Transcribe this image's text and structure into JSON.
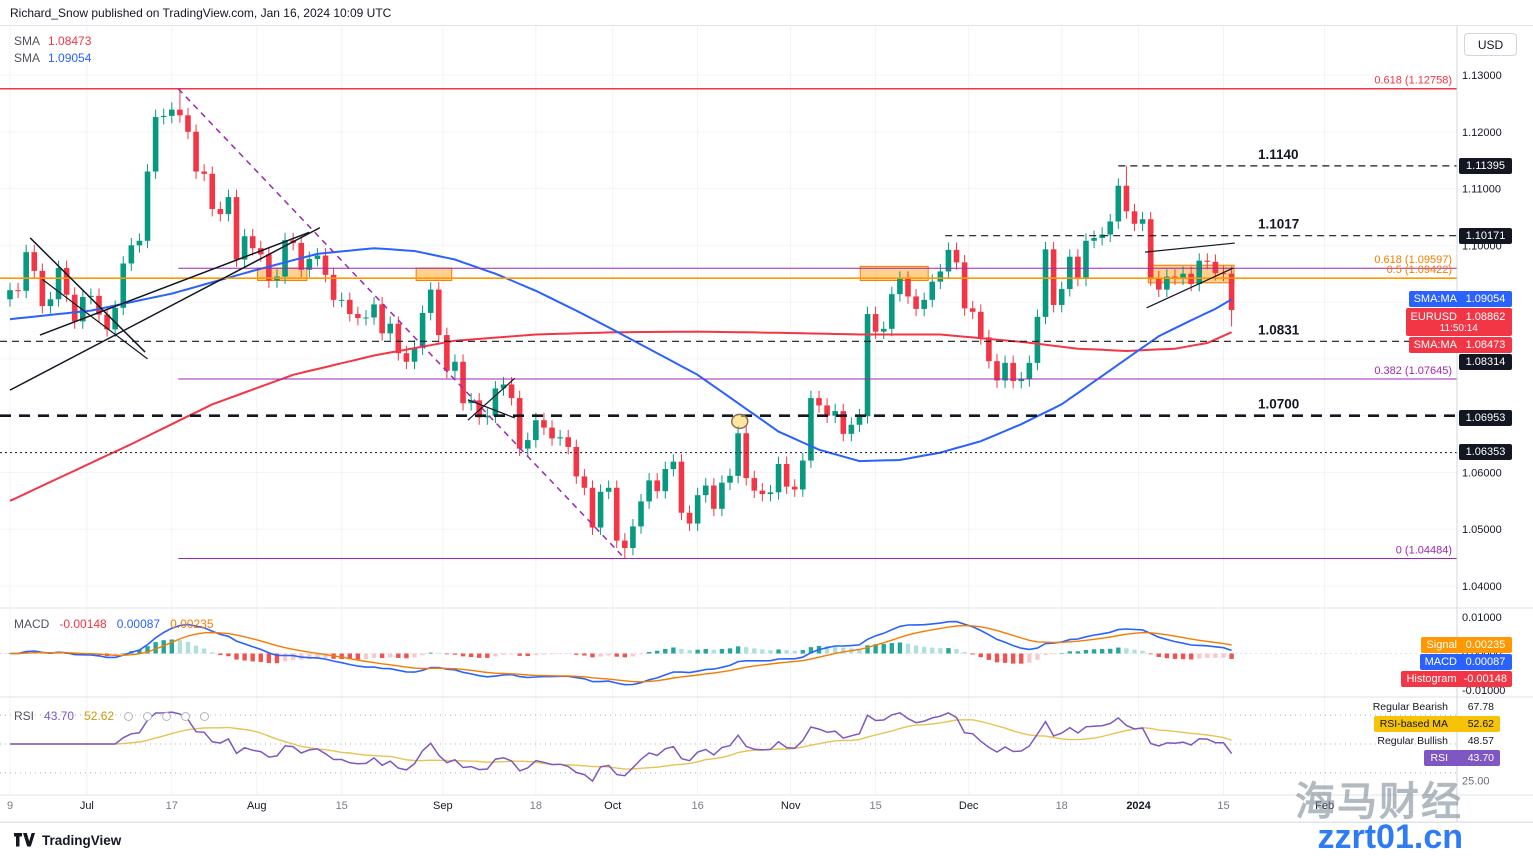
{
  "header": {
    "text": "Richard_Snow published on TradingView.com, Jan 16, 2024 10:09 UTC"
  },
  "price_pane": {
    "legend": [
      {
        "label": "SMA",
        "value": "1.08473"
      },
      {
        "label": "SMA",
        "value": "1.09054"
      }
    ]
  },
  "macd_pane": {
    "title": "MACD",
    "values": [
      "-0.00148",
      "0.00087",
      "0.00235"
    ]
  },
  "rsi_pane": {
    "title": "RSI",
    "values": [
      "43.70",
      "52.62"
    ]
  },
  "price_axis": {
    "currency": "USD",
    "ticks": [
      {
        "text": "1.13000",
        "price": 1.13
      },
      {
        "text": "1.12000",
        "price": 1.12
      },
      {
        "text": "1.11000",
        "price": 1.11
      },
      {
        "text": "1.10000",
        "price": 1.1
      },
      {
        "text": "1.09000",
        "price": 1.09
      },
      {
        "text": "1.08000",
        "price": 1.08
      },
      {
        "text": "1.07000",
        "price": 1.07
      },
      {
        "text": "1.06000",
        "price": 1.06
      },
      {
        "text": "1.05000",
        "price": 1.05
      },
      {
        "text": "1.04000",
        "price": 1.04
      }
    ],
    "badges": [
      {
        "name": "level-badge-11395",
        "text": "1.11395",
        "price": 1.11395,
        "bg": "#131722",
        "fg": "#ffffff"
      },
      {
        "name": "level-badge-10171",
        "text": "1.10171",
        "price": 1.10171,
        "bg": "#131722",
        "fg": "#ffffff"
      },
      {
        "name": "sma-blue-badge",
        "label": "SMA:MA",
        "text": "1.09054",
        "price": 1.09054,
        "bg": "#2962ff",
        "fg": "#ffffff"
      },
      {
        "name": "symbol-price-badge",
        "label": "EURUSD",
        "text": "1.08862",
        "sub": "11:50:14",
        "price": 1.08862,
        "bg": "#f23645",
        "fg": "#ffffff"
      },
      {
        "name": "sma-red-badge",
        "label": "SMA:MA",
        "text": "1.08473",
        "price": 1.08473,
        "bg": "#f23645",
        "fg": "#ffffff"
      },
      {
        "name": "level-badge-08314",
        "text": "1.08314",
        "price": 1.08314,
        "bg": "#131722",
        "fg": "#ffffff"
      },
      {
        "name": "level-badge-06953",
        "text": "1.06953",
        "price": 1.06953,
        "bg": "#131722",
        "fg": "#ffffff"
      },
      {
        "name": "level-badge-06353",
        "text": "1.06353",
        "price": 1.06353,
        "bg": "#131722",
        "fg": "#ffffff"
      }
    ]
  },
  "macd_axis": {
    "ticks": [
      {
        "text": "0.01000",
        "value": 0.01
      },
      {
        "text": "0.00000",
        "value": 0.0
      },
      {
        "text": "-0.01000",
        "value": -0.01
      }
    ],
    "badges": [
      {
        "name": "signal-badge",
        "label": "Signal",
        "text": "0.00235",
        "value": 0.00235,
        "bg": "#ff9800",
        "fg": "#ffffff"
      },
      {
        "name": "macd-badge",
        "label": "MACD",
        "text": "0.00087",
        "value": 0.00087,
        "bg": "#2962ff",
        "fg": "#ffffff"
      },
      {
        "name": "histogram-badge",
        "label": "Histogram",
        "text": "-0.00148",
        "value": -0.00148,
        "bg": "#f23645",
        "fg": "#ffffff"
      }
    ]
  },
  "rsi_axis": {
    "rows": [
      {
        "name": "regular-bearish-label",
        "label": "Regular Bearish",
        "text": "67.78",
        "bg": "transparent",
        "fg": "#131722"
      },
      {
        "name": "rsi-ma-badge",
        "label": "RSI-based MA",
        "text": "52.62",
        "bg": "#f6c309",
        "fg": "#131722"
      },
      {
        "name": "regular-bullish-label",
        "label": "Regular Bullish",
        "text": "48.57",
        "bg": "transparent",
        "fg": "#131722"
      },
      {
        "name": "rsi-badge",
        "label": "RSI",
        "text": "43.70",
        "bg": "#7e57c2",
        "fg": "#ffffff"
      }
    ],
    "tick": {
      "text": "25.00",
      "value": 25
    }
  },
  "watermark": {
    "line1": "海马财经",
    "line2": "zzrt01.cn"
  },
  "footer": {
    "brand": "TradingView"
  },
  "colors": {
    "up": "#089981",
    "down": "#f23645",
    "sma_red": "#f23645",
    "sma_blue": "#2962ff",
    "macd_line": "#2962ff",
    "signal_line": "#f57c00",
    "hist_up": "#26a69a",
    "hist_up_weak": "#b2dfdb",
    "hist_down": "#ef5350",
    "hist_down_weak": "#f9c9cc",
    "rsi_line": "#7e57c2",
    "rsi_ma": "#e8c252",
    "fib_purple": "#9c27b0",
    "fib_orange": "#ff9800",
    "level_black": "#131722",
    "box_fill": "rgba(255,152,0,0.45)",
    "box_stroke": "#f57c00"
  },
  "chart_data": {
    "type": "candlestick",
    "symbol": "EURUSD",
    "visible_price_range": [
      1.036,
      1.1386
    ],
    "first_open": 1.0905,
    "closes": [
      1.0921,
      1.092,
      1.0988,
      1.0955,
      1.0893,
      1.0905,
      1.096,
      1.0913,
      1.0866,
      1.0909,
      1.0911,
      1.0878,
      1.0852,
      1.089,
      1.0968,
      1.1,
      1.1008,
      1.113,
      1.1226,
      1.1228,
      1.1239,
      1.1229,
      1.12,
      1.113,
      1.1126,
      1.1064,
      1.1055,
      1.1085,
      1.0975,
      1.1016,
      1.0995,
      1.0984,
      1.0938,
      1.0945,
      1.1009,
      1.1004,
      1.0957,
      1.0976,
      1.0982,
      1.0948,
      1.0904,
      1.0904,
      1.0879,
      1.0872,
      1.0873,
      1.0896,
      1.0845,
      1.0862,
      1.081,
      1.0795,
      1.082,
      1.0881,
      1.0922,
      1.0842,
      1.0779,
      1.0795,
      1.0722,
      1.0727,
      1.0697,
      1.07,
      1.0748,
      1.0755,
      1.0731,
      1.0642,
      1.0657,
      1.0692,
      1.0679,
      1.066,
      1.0662,
      1.0645,
      1.0593,
      1.0573,
      1.0503,
      1.0566,
      1.0573,
      1.048,
      1.0467,
      1.0505,
      1.0549,
      1.0586,
      1.0567,
      1.0606,
      1.0619,
      1.0529,
      1.051,
      1.056,
      1.0577,
      1.0536,
      1.0582,
      1.0594,
      1.0669,
      1.059,
      1.0568,
      1.0562,
      1.0565,
      1.0615,
      1.0575,
      1.057,
      1.0621,
      1.0731,
      1.0718,
      1.07,
      1.0708,
      1.0668,
      1.0684,
      1.0699,
      1.0879,
      1.0848,
      1.0853,
      1.0914,
      1.0941,
      1.091,
      1.0888,
      1.0904,
      1.0936,
      1.0954,
      1.0992,
      1.097,
      1.0889,
      1.0883,
      1.0838,
      1.0796,
      1.0762,
      1.0793,
      1.0761,
      1.0764,
      1.0793,
      1.0874,
      1.0993,
      1.0895,
      1.0923,
      1.098,
      1.0941,
      1.1008,
      1.1013,
      1.1019,
      1.1042,
      1.1105,
      1.106,
      1.1038,
      1.1046,
      1.0942,
      1.0922,
      1.0945,
      1.0943,
      1.095,
      1.0932,
      1.0973,
      1.0971,
      1.0951,
      1.095,
      1.0886
    ],
    "default_wick": 0.0013,
    "wick_overrides": {
      "21": {
        "h": 1.12758
      },
      "76": {
        "l": 1.04484
      },
      "138": {
        "h": 1.11395
      },
      "151": {
        "l": 1.0857
      }
    },
    "key_points": {
      "july_high": 1.12758,
      "october_low": 1.04484,
      "december_high": 1.11395,
      "last_price": 1.08862
    },
    "sma_red": {
      "last": 1.08473,
      "points": [
        [
          0,
          1.055
        ],
        [
          15,
          1.065
        ],
        [
          25,
          1.072
        ],
        [
          35,
          1.0772
        ],
        [
          45,
          1.0806
        ],
        [
          55,
          1.0832
        ],
        [
          65,
          1.0843
        ],
        [
          75,
          1.0847
        ],
        [
          85,
          1.0848
        ],
        [
          95,
          1.0846
        ],
        [
          105,
          1.0843
        ],
        [
          115,
          1.0843
        ],
        [
          125,
          1.083
        ],
        [
          132,
          1.0818
        ],
        [
          138,
          1.0814
        ],
        [
          144,
          1.0818
        ],
        [
          148,
          1.0828
        ],
        [
          151,
          1.0847
        ]
      ]
    },
    "sma_blue": {
      "last": 1.09054,
      "points": [
        [
          0,
          1.087
        ],
        [
          10,
          1.0885
        ],
        [
          20,
          1.0915
        ],
        [
          30,
          1.0955
        ],
        [
          38,
          1.0985
        ],
        [
          45,
          1.0995
        ],
        [
          50,
          1.099
        ],
        [
          55,
          1.0975
        ],
        [
          60,
          1.095
        ],
        [
          65,
          1.092
        ],
        [
          70,
          1.0885
        ],
        [
          75,
          1.0848
        ],
        [
          80,
          1.081
        ],
        [
          85,
          1.0772
        ],
        [
          90,
          1.0722
        ],
        [
          95,
          1.0672
        ],
        [
          100,
          1.064
        ],
        [
          105,
          1.062
        ],
        [
          110,
          1.0622
        ],
        [
          115,
          1.0635
        ],
        [
          120,
          1.0655
        ],
        [
          125,
          1.0685
        ],
        [
          130,
          1.072
        ],
        [
          134,
          1.076
        ],
        [
          138,
          1.08
        ],
        [
          142,
          1.084
        ],
        [
          146,
          1.0868
        ],
        [
          149,
          1.0888
        ],
        [
          151,
          1.0905
        ]
      ]
    },
    "levels": [
      {
        "price": 1.12758,
        "from": 0,
        "color": "#f23645",
        "style": "solid",
        "w": 1.4,
        "label": "0.618 (1.12758)",
        "label_color": "#f23645"
      },
      {
        "price": 1.09597,
        "from": 20.8,
        "color": "#9c27b0",
        "style": "solid",
        "w": 1,
        "label": "0.618 (1.09597)",
        "label_color": "#f57c00"
      },
      {
        "price": 1.09422,
        "from": 0,
        "color": "#ff9800",
        "style": "solid",
        "w": 1.6,
        "label": "0.5 (1.09422)",
        "label_color": "#f57c00"
      },
      {
        "price": 1.07645,
        "from": 20.8,
        "color": "#9c27b0",
        "style": "solid",
        "w": 1,
        "label": "0.382 (1.07645)",
        "label_color": "#9c27b0"
      },
      {
        "price": 1.04484,
        "from": 20.8,
        "color": "#9c27b0",
        "style": "solid",
        "w": 1,
        "label": "0 (1.04484)",
        "label_color": "#9c27b0"
      },
      {
        "price": 1.114,
        "from": 137,
        "color": "#131722",
        "style": "dashed",
        "w": 1.2,
        "big_label": "1.1140"
      },
      {
        "price": 1.1017,
        "from": 115.6,
        "color": "#131722",
        "style": "dashed",
        "w": 1.2,
        "big_label": "1.1017"
      },
      {
        "price": 1.0831,
        "from": 0,
        "color": "#131722",
        "style": "dashed",
        "w": 1.2,
        "big_label": "1.0831"
      },
      {
        "price": 1.07,
        "from": 0,
        "color": "#131722",
        "style": "dashed-bold",
        "w": 2.6,
        "big_label": "1.0700"
      },
      {
        "price": 1.0635,
        "from": 0,
        "color": "#131722",
        "style": "dotted",
        "w": 1
      }
    ],
    "trendlines": [
      {
        "pts": [
          [
            20.8,
            1.12758
          ],
          [
            76,
            1.04484
          ]
        ],
        "color": "#9c27b0",
        "dash": "6 5",
        "w": 1.5
      },
      {
        "pts": [
          [
            2.5,
            1.1013
          ],
          [
            16.7,
            1.0812
          ]
        ],
        "color": "#131722",
        "dash": "",
        "w": 1.5
      },
      {
        "pts": [
          [
            4,
            1.094
          ],
          [
            17,
            1.08
          ]
        ],
        "color": "#131722",
        "dash": "",
        "w": 1.2
      },
      {
        "pts": [
          [
            3.7,
            1.0842
          ],
          [
            37,
            1.1023
          ]
        ],
        "color": "#131722",
        "dash": "",
        "w": 1.5
      },
      {
        "pts": [
          [
            0,
            1.0745
          ],
          [
            38.3,
            1.1031
          ]
        ],
        "color": "#131722",
        "dash": "",
        "w": 1.5
      },
      {
        "pts": [
          [
            56.6,
            1.0692
          ],
          [
            62.4,
            1.0766
          ]
        ],
        "color": "#131722",
        "dash": "",
        "w": 1.2
      },
      {
        "pts": [
          [
            56.6,
            1.0728
          ],
          [
            62.4,
            1.0696
          ]
        ],
        "color": "#131722",
        "dash": "",
        "w": 1.2
      },
      {
        "pts": [
          [
            140.3,
            1.0988
          ],
          [
            151.4,
            1.1004
          ]
        ],
        "color": "#131722",
        "dash": "",
        "w": 1.2
      },
      {
        "pts": [
          [
            140.5,
            1.089
          ],
          [
            151.2,
            1.096
          ]
        ],
        "color": "#131722",
        "dash": "",
        "w": 1.2
      }
    ],
    "boxes": [
      {
        "i0": 30.6,
        "i1": 36.7,
        "p0": 1.096,
        "p1": 1.0938
      },
      {
        "i0": 50.2,
        "i1": 54.6,
        "p0": 1.096,
        "p1": 1.0938
      },
      {
        "i0": 105.1,
        "i1": 113.5,
        "p0": 1.0963,
        "p1": 1.0938
      },
      {
        "i0": 140.7,
        "i1": 151.3,
        "p0": 1.0965,
        "p1": 1.0934
      }
    ],
    "marker": {
      "i": 90.2,
      "p": 1.069,
      "r": 7
    },
    "macd": {
      "last_histogram": -0.00148,
      "last_macd": 0.00087,
      "last_signal": 0.00235,
      "range": [
        -0.01,
        0.01
      ]
    },
    "rsi": {
      "last": 43.7,
      "ma_last": 52.62,
      "bands": [
        70,
        50,
        30
      ],
      "regular_bearish": 67.78,
      "regular_bullish": 48.57
    },
    "time_ticks": [
      {
        "label": "9",
        "i": 0,
        "major": false
      },
      {
        "label": "Jul",
        "i": 9.5,
        "major": true
      },
      {
        "label": "17",
        "i": 20,
        "major": false
      },
      {
        "label": "Aug",
        "i": 30.5,
        "major": true
      },
      {
        "label": "15",
        "i": 41,
        "major": false
      },
      {
        "label": "Sep",
        "i": 53.5,
        "major": true
      },
      {
        "label": "18",
        "i": 65,
        "major": false
      },
      {
        "label": "Oct",
        "i": 74.5,
        "major": true
      },
      {
        "label": "16",
        "i": 85,
        "major": false
      },
      {
        "label": "Nov",
        "i": 96.5,
        "major": true
      },
      {
        "label": "15",
        "i": 107,
        "major": false
      },
      {
        "label": "Dec",
        "i": 118.5,
        "major": true
      },
      {
        "label": "18",
        "i": 130,
        "major": false
      },
      {
        "label": "2024",
        "i": 139.5,
        "major": true,
        "year": true
      },
      {
        "label": "15",
        "i": 150,
        "major": false
      },
      {
        "label": "Feb",
        "i": 162.5,
        "major": true
      }
    ]
  }
}
